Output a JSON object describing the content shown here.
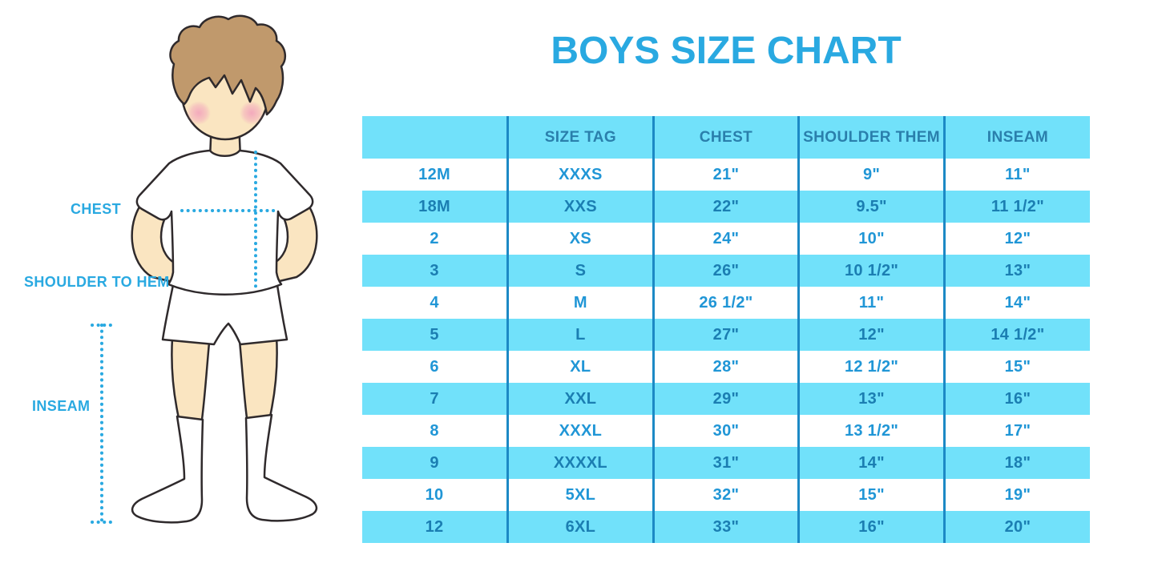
{
  "title": "BOYS SIZE CHART",
  "figure": {
    "chest_label": "CHEST",
    "shoulder_to_hem_label": "SHOULDER TO HEM",
    "inseam_label": "INSEAM"
  },
  "chart_data": {
    "type": "table",
    "title": "BOYS SIZE CHART",
    "columns": [
      "",
      "SIZE TAG",
      "CHEST",
      "SHOULDER THEM",
      "INSEAM"
    ],
    "rows": [
      [
        "12M",
        "XXXS",
        "21\"",
        "9\"",
        "11\""
      ],
      [
        "18M",
        "XXS",
        "22\"",
        "9.5\"",
        "11 1/2\""
      ],
      [
        "2",
        "XS",
        "24\"",
        "10\"",
        "12\""
      ],
      [
        "3",
        "S",
        "26\"",
        "10 1/2\"",
        "13\""
      ],
      [
        "4",
        "M",
        "26 1/2\"",
        "11\"",
        "14\""
      ],
      [
        "5",
        "L",
        "27\"",
        "12\"",
        "14 1/2\""
      ],
      [
        "6",
        "XL",
        "28\"",
        "12 1/2\"",
        "15\""
      ],
      [
        "7",
        "XXL",
        "29\"",
        "13\"",
        "16\""
      ],
      [
        "8",
        "XXXL",
        "30\"",
        "13 1/2\"",
        "17\""
      ],
      [
        "9",
        "XXXXL",
        "31\"",
        "14\"",
        "18\""
      ],
      [
        "10",
        "5XL",
        "32\"",
        "15\"",
        "19\""
      ],
      [
        "12",
        "6XL",
        "33\"",
        "16\"",
        "20\""
      ]
    ],
    "row_striping": "alternating white and light blue, first data row white",
    "grid": "vertical column separator lines only, no horizontal rules",
    "legend_position": "none"
  },
  "colors": {
    "accent_blue": "#29A9E1",
    "row_highlight": "#71E1FA",
    "column_line": "#1C89C5",
    "text_on_white": "#2096D6",
    "text_on_blue": "#1B7EB2",
    "header_text": "#2A7FAC",
    "skin": "#FAE5C1",
    "hair": "#C0996C",
    "blush": "#F2A3BC",
    "outline": "#2F2A2C"
  }
}
